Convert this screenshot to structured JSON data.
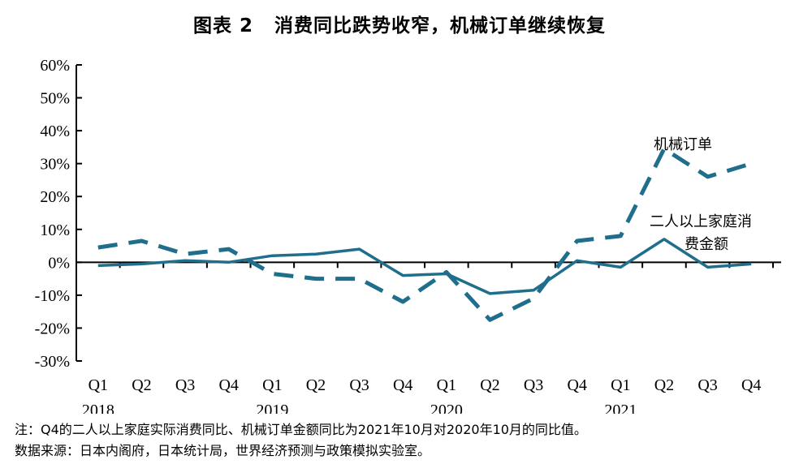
{
  "title": {
    "figure_number": "图表 2",
    "text": "消费同比跌势收窄，机械订单继续恢复"
  },
  "chart_data": {
    "type": "line",
    "title": "消费同比跌势收窄，机械订单继续恢复",
    "ylim": [
      -30,
      60
    ],
    "y_ticks": [
      60,
      50,
      40,
      30,
      20,
      10,
      0,
      -10,
      -20,
      -30
    ],
    "y_tick_labels": [
      "60%",
      "50%",
      "40%",
      "30%",
      "20%",
      "10%",
      "0%",
      "-10%",
      "-20%",
      "-30%"
    ],
    "categories": [
      "Q1",
      "Q2",
      "Q3",
      "Q4",
      "Q1",
      "Q2",
      "Q3",
      "Q4",
      "Q1",
      "Q2",
      "Q3",
      "Q4",
      "Q1",
      "Q2",
      "Q3",
      "Q4"
    ],
    "years": [
      {
        "label": "2018",
        "start_index": 0
      },
      {
        "label": "2019",
        "start_index": 4
      },
      {
        "label": "2020",
        "start_index": 8
      },
      {
        "label": "2021",
        "start_index": 12
      }
    ],
    "series": [
      {
        "name": "机械订单",
        "style": "dashed",
        "color": "#1f6e8c",
        "values": [
          4.5,
          6.5,
          2.5,
          4.0,
          -3.5,
          -5.0,
          -5.0,
          -12.0,
          -3.0,
          -17.5,
          -11.0,
          6.5,
          8.0,
          34.5,
          26.0,
          30.0
        ]
      },
      {
        "name": "二人以上家庭消费金额",
        "name_lines": [
          "二人以上家庭消",
          "费金额"
        ],
        "style": "solid",
        "color": "#1f6e8c",
        "values": [
          -1.0,
          -0.5,
          0.5,
          0.0,
          2.0,
          2.5,
          4.0,
          -4.0,
          -3.5,
          -9.5,
          -8.5,
          0.5,
          -1.5,
          7.0,
          -1.5,
          -0.5
        ]
      }
    ]
  },
  "notes": {
    "note": "注：Q4的二人以上家庭实际消费同比、机械订单金额同比为2021年10月对2020年10月的同比值。",
    "source": "数据来源：日本内阁府，日本统计局，世界经济预测与政策模拟实验室。"
  }
}
